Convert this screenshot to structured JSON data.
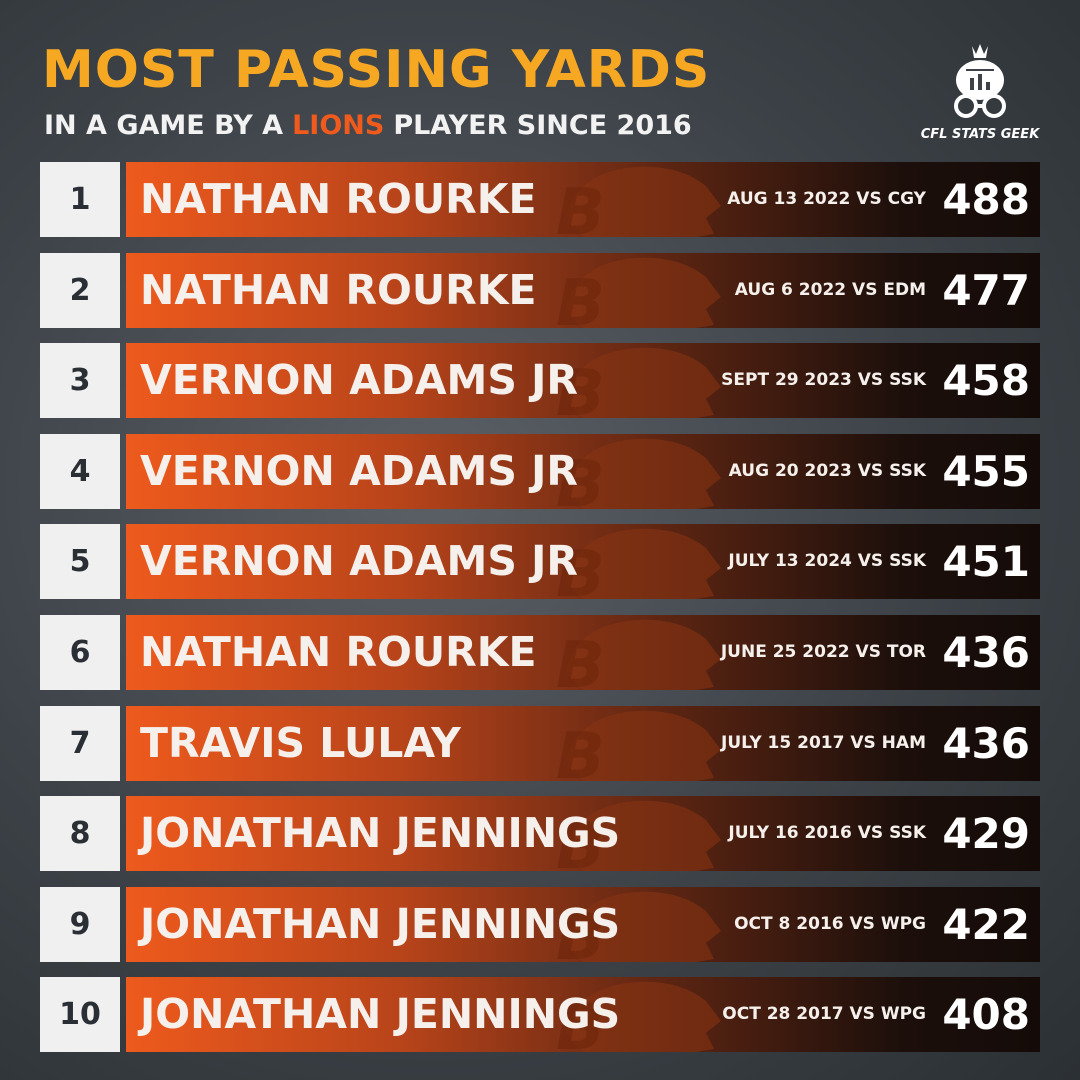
{
  "header": {
    "title": "MOST PASSING YARDS",
    "subtitle": [
      "IN A GAME BY A",
      "LIONS",
      "PLAYER SINCE 2016"
    ],
    "logo": "CFL STATS GEEK"
  },
  "rows": [
    {
      "rank": 1,
      "name": "NATHAN ROURKE",
      "game": "AUG 13 2022 VS CGY",
      "yards": 488
    },
    {
      "rank": 2,
      "name": "NATHAN ROURKE",
      "game": "AUG 6 2022 VS EDM",
      "yards": 477
    },
    {
      "rank": 3,
      "name": "VERNON ADAMS JR",
      "game": "SEPT 29 2023 VS SSK",
      "yards": 458
    },
    {
      "rank": 4,
      "name": "VERNON ADAMS JR",
      "game": "AUG 20 2023 VS SSK",
      "yards": 455
    },
    {
      "rank": 5,
      "name": "VERNON ADAMS JR",
      "game": "JULY 13 2024 VS SSK",
      "yards": 451
    },
    {
      "rank": 6,
      "name": "NATHAN ROURKE",
      "game": "JUNE 25 2022 VS TOR",
      "yards": 436
    },
    {
      "rank": 7,
      "name": "TRAVIS LULAY",
      "game": "JULY 15 2017 VS HAM",
      "yards": 436
    },
    {
      "rank": 8,
      "name": "JONATHAN JENNINGS",
      "game": "JULY 16 2016 VS SSK",
      "yards": 429
    },
    {
      "rank": 9,
      "name": "JONATHAN JENNINGS",
      "game": "OCT 8 2016 VS WPG",
      "yards": 422
    },
    {
      "rank": 10,
      "name": "JONATHAN JENNINGS",
      "game": "OCT 28 2017 VS WPG",
      "yards": 408
    }
  ]
}
